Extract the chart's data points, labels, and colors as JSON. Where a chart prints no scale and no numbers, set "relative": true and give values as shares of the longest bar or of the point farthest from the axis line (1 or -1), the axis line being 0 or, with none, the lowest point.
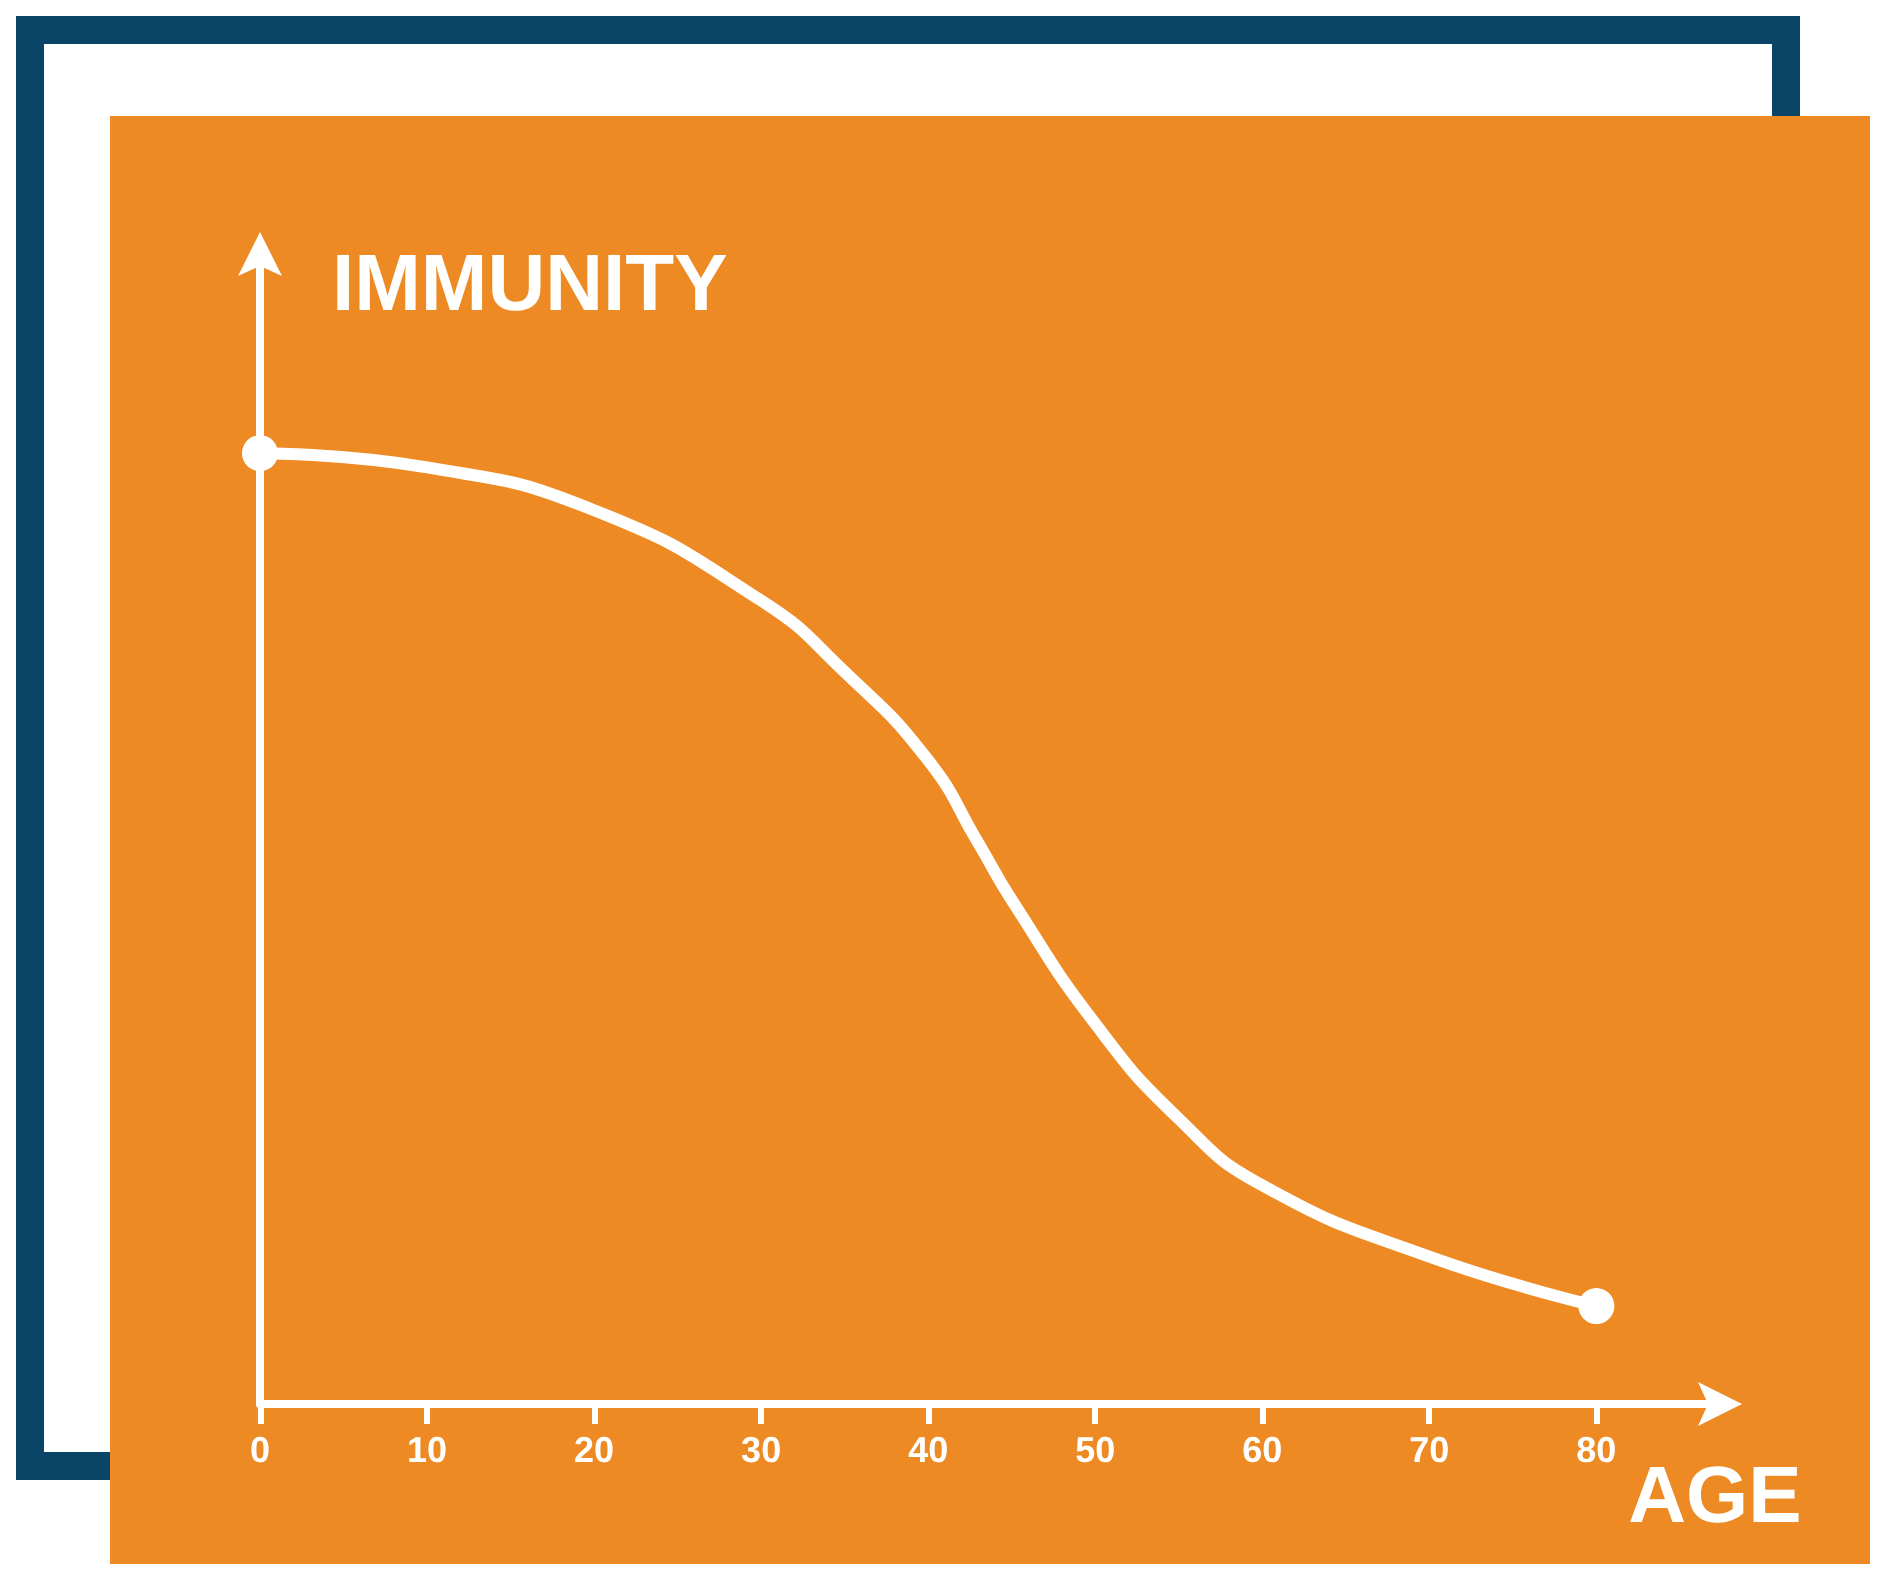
{
  "chart_data": {
    "type": "line",
    "relative": true,
    "xlabel": "AGE",
    "ylabel": "IMMUNITY",
    "xlim": [
      0,
      88
    ],
    "xticks": [
      0,
      10,
      20,
      30,
      40,
      50,
      60,
      70,
      80
    ],
    "grid": false,
    "marker": "none",
    "line_style": "solid",
    "series": [
      {
        "color": "#ffffff",
        "x": [
          0,
          10,
          20,
          30,
          35,
          40,
          43,
          45,
          50,
          55,
          60,
          70,
          80
        ],
        "values": [
          1,
          0.985,
          0.94,
          0.845,
          0.77,
          0.677,
          0.59,
          0.53,
          0.4,
          0.3,
          0.23,
          0.155,
          0.103
        ]
      },
      {
        "type": "scatter",
        "color": "#ffffff",
        "marker": "circle",
        "x": [
          0,
          80
        ],
        "values": [
          1,
          0.103
        ]
      }
    ]
  }
}
